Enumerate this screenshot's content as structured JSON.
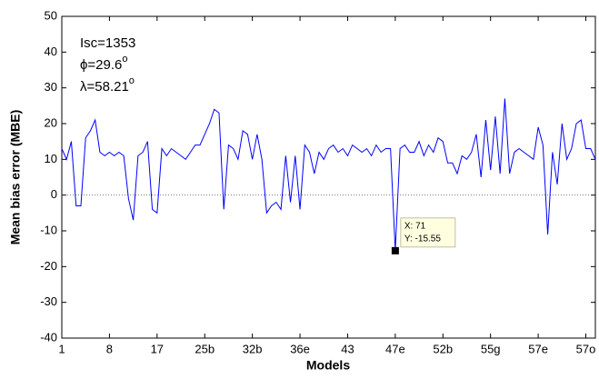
{
  "chart_data": {
    "type": "line",
    "ylabel": "Mean bias error (MBE)",
    "xlabel": "Models",
    "annotations": [
      {
        "text": "Isc=1353"
      },
      {
        "text": "ϕ=29.6",
        "sup": "o"
      },
      {
        "text": "λ=58.21",
        "sup": "o"
      }
    ],
    "x": [
      1,
      2,
      3,
      4,
      5,
      6,
      7,
      8,
      9,
      10,
      11,
      12,
      13,
      14,
      15,
      16,
      17,
      18,
      19,
      20,
      21,
      22,
      23,
      24,
      25,
      26,
      27,
      28,
      29,
      30,
      31,
      32,
      33,
      34,
      35,
      36,
      37,
      38,
      39,
      40,
      41,
      42,
      43,
      44,
      45,
      46,
      47,
      48,
      49,
      50,
      51,
      52,
      53,
      54,
      55,
      56,
      57,
      58,
      59,
      60,
      61,
      62,
      63,
      64,
      65,
      66,
      67,
      68,
      69,
      70,
      71,
      72,
      73,
      74,
      75,
      76,
      77,
      78,
      79,
      80,
      81,
      82,
      83,
      84,
      85,
      86,
      87,
      88,
      89,
      90,
      91,
      92,
      93,
      94,
      95,
      96,
      97,
      98,
      99,
      100,
      101,
      102,
      103,
      104,
      105,
      106,
      107,
      108,
      109,
      110,
      111,
      112,
      113
    ],
    "series": [
      {
        "color": "#0000ff",
        "values": [
          13,
          10,
          15,
          -3,
          -3,
          16,
          18,
          21,
          12,
          11,
          12,
          11,
          12,
          11,
          -1,
          -7,
          11,
          12,
          15,
          -4,
          -5,
          13,
          11,
          13,
          12,
          11,
          10,
          12,
          14,
          14,
          17,
          20,
          24,
          23,
          -4,
          14,
          13,
          10,
          18,
          17,
          10,
          17,
          10,
          -5,
          -3,
          -2,
          -4,
          11,
          -2,
          11,
          -4,
          14,
          12,
          6,
          12,
          10,
          13,
          14,
          12,
          13,
          11,
          14,
          13,
          12,
          13,
          11,
          14,
          12,
          13,
          13,
          -15.55,
          13,
          14,
          12,
          12,
          15,
          11,
          14,
          12,
          16,
          15,
          9,
          9,
          6,
          11,
          10,
          12,
          17,
          5,
          21,
          7,
          22,
          6,
          27,
          6,
          12,
          13,
          12,
          11,
          10,
          19,
          14,
          -11,
          12,
          3,
          20,
          10,
          13,
          20,
          21,
          13,
          13,
          10
        ]
      }
    ],
    "zero_line": true,
    "datatip": {
      "x": 71,
      "y": -15.55,
      "labels": [
        "X: 71",
        "Y: -15.55"
      ]
    },
    "xlim": [
      1,
      113
    ],
    "xticks": [
      {
        "value": 1,
        "label": "1"
      },
      {
        "value": 11,
        "label": "8"
      },
      {
        "value": 21,
        "label": "17"
      },
      {
        "value": 31,
        "label": "25b"
      },
      {
        "value": 41,
        "label": "32b"
      },
      {
        "value": 51,
        "label": "36e"
      },
      {
        "value": 61,
        "label": "43"
      },
      {
        "value": 71,
        "label": "47e"
      },
      {
        "value": 81,
        "label": "52b"
      },
      {
        "value": 91,
        "label": "55g"
      },
      {
        "value": 101,
        "label": "57e"
      },
      {
        "value": 111,
        "label": "57o"
      }
    ],
    "ylim": [
      -40,
      50
    ],
    "yticks": [
      -40,
      -30,
      -20,
      -10,
      0,
      10,
      20,
      30,
      40,
      50
    ]
  }
}
